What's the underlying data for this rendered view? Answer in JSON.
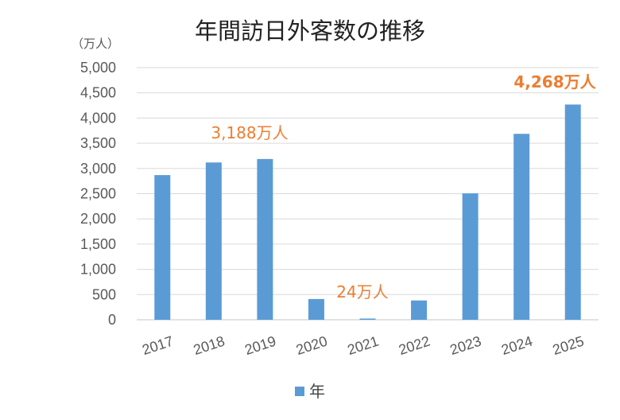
{
  "chart_data": {
    "type": "bar",
    "title": "年間訪日外客数の推移",
    "ylabel": "（万人）",
    "xlabel": "",
    "categories": [
      "2017",
      "2018",
      "2019",
      "2020",
      "2021",
      "2022",
      "2023",
      "2024",
      "2025"
    ],
    "series": [
      {
        "name": "年",
        "color": "#5b9bd5",
        "values": [
          2869,
          3119,
          3188,
          412,
          24,
          383,
          2507,
          3687,
          4268
        ]
      }
    ],
    "ylim": [
      0,
      5000
    ],
    "yticks": [
      0,
      500,
      1000,
      1500,
      2000,
      2500,
      3000,
      3500,
      4000,
      4500,
      5000
    ],
    "ytick_labels": [
      "0",
      "500",
      "1,000",
      "1,500",
      "2,000",
      "2,500",
      "3,000",
      "3,500",
      "4,000",
      "4,500",
      "5,000"
    ],
    "grid": true,
    "legend_position": "bottom",
    "annotations": [
      {
        "category": "2019",
        "text": "3,188万人",
        "color": "#ed7d31",
        "bold": false
      },
      {
        "category": "2021",
        "text": "24万人",
        "color": "#ed7d31",
        "bold": false
      },
      {
        "category": "2025",
        "text": "4,268万人",
        "color": "#ed7d31",
        "bold": true
      }
    ]
  },
  "legend": {
    "label": "年"
  }
}
